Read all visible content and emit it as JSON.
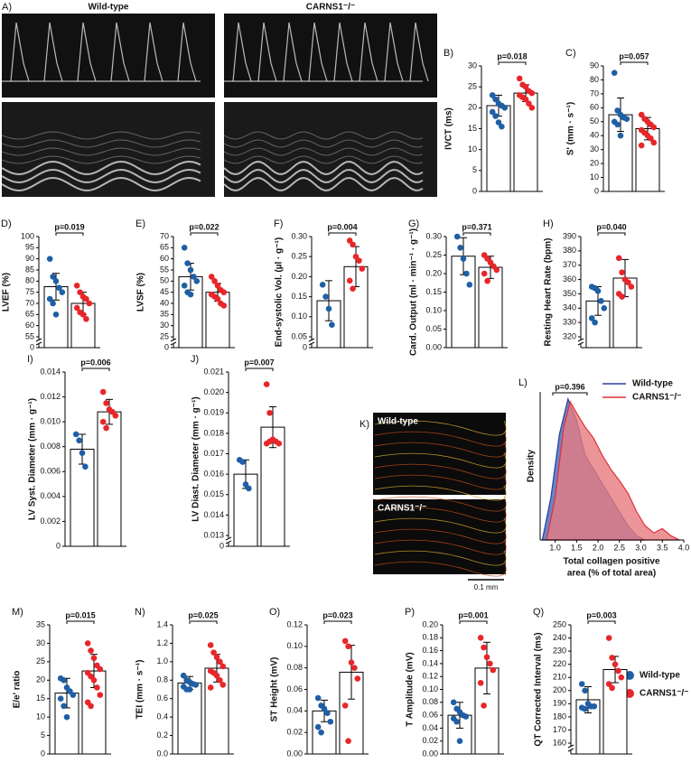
{
  "images": {
    "A": {
      "label": "A)",
      "wt": "Wild-type",
      "ko": "CARNS1⁻/⁻"
    },
    "K": {
      "label": "K)",
      "wt": "Wild-type",
      "ko": "CARNS1⁻/⁻",
      "scale": "0.1 mm"
    }
  },
  "legend": [
    {
      "name": "Wild-type",
      "color": "#1f5fa5"
    },
    {
      "name": "CARNS1⁻/⁻",
      "color": "#e8262a"
    }
  ],
  "chart_data": [
    {
      "type": "bar",
      "panel": "B)",
      "ylabel": "IVCT (ms)",
      "annotation": "p=0.018",
      "ylim": [
        0,
        30
      ],
      "yticks": [
        0,
        5,
        10,
        15,
        20,
        25,
        30
      ],
      "series": [
        {
          "color": "#1f5fa5",
          "values": [
            20.5
          ],
          "errors": [
            2.5
          ],
          "points": [
            23,
            22,
            21,
            20.5,
            20,
            19,
            18,
            16.5,
            15.5
          ]
        },
        {
          "color": "#e8262a",
          "values": [
            23.5
          ],
          "errors": [
            2
          ],
          "points": [
            27,
            25.5,
            25,
            24,
            23.5,
            23,
            22.5,
            22,
            21,
            20
          ]
        }
      ]
    },
    {
      "type": "bar",
      "panel": "C)",
      "ylabel": "S' (mm · s⁻¹)",
      "annotation": "p=0.057",
      "ylim": [
        0,
        90
      ],
      "yticks": [
        0,
        10,
        20,
        30,
        40,
        50,
        60,
        70,
        80,
        90
      ],
      "series": [
        {
          "color": "#1f5fa5",
          "values": [
            55
          ],
          "errors": [
            12
          ],
          "points": [
            85,
            58,
            55,
            53,
            52,
            50,
            48,
            40
          ]
        },
        {
          "color": "#e8262a",
          "values": [
            45
          ],
          "errors": [
            8
          ],
          "points": [
            55,
            52,
            50,
            48,
            46,
            44,
            42,
            40,
            38,
            35,
            33
          ]
        }
      ]
    },
    {
      "type": "bar",
      "panel": "D)",
      "ylabel": "LVEF (%)",
      "annotation": "p=0.019",
      "axis_break": true,
      "ylim": [
        55,
        100
      ],
      "yticks": [
        0,
        55,
        60,
        65,
        70,
        75,
        80,
        85,
        90,
        95,
        100
      ],
      "series": [
        {
          "color": "#1f5fa5",
          "values": [
            77.5
          ],
          "errors": [
            6
          ],
          "points": [
            90,
            82,
            80,
            77,
            75,
            72,
            70,
            65
          ]
        },
        {
          "color": "#e8262a",
          "values": [
            70
          ],
          "errors": [
            5
          ],
          "points": [
            78,
            75,
            73,
            72,
            70,
            68,
            66,
            65,
            63
          ]
        }
      ]
    },
    {
      "type": "bar",
      "panel": "E)",
      "ylabel": "LVSF (%)",
      "annotation": "p=0.022",
      "axis_break": true,
      "ylim": [
        25,
        70
      ],
      "yticks": [
        0,
        25,
        30,
        35,
        40,
        45,
        50,
        55,
        60,
        65,
        70
      ],
      "series": [
        {
          "color": "#1f5fa5",
          "values": [
            52
          ],
          "errors": [
            6
          ],
          "points": [
            65,
            58,
            55,
            52,
            50,
            48,
            45,
            44
          ]
        },
        {
          "color": "#e8262a",
          "values": [
            45
          ],
          "errors": [
            4
          ],
          "points": [
            52,
            50,
            48,
            46,
            45,
            44,
            43,
            42,
            40,
            39
          ]
        }
      ]
    },
    {
      "type": "bar",
      "panel": "F)",
      "ylabel": "End-systolic Vol. (µl · g⁻¹)",
      "annotation": "p=0.004",
      "axis_break": true,
      "ylim": [
        0.05,
        0.3
      ],
      "yticks": [
        0,
        0.05,
        {
          "value": 0.1,
          "label": "0.10"
        },
        0.15,
        {
          "value": 0.2,
          "label": "0.20"
        },
        0.25,
        {
          "value": 0.3,
          "label": "0.30"
        }
      ],
      "series": [
        {
          "color": "#1f5fa5",
          "values": [
            0.14
          ],
          "errors": [
            0.05
          ],
          "points": [
            0.18,
            0.15,
            0.12,
            0.08
          ]
        },
        {
          "color": "#e8262a",
          "values": [
            0.225
          ],
          "errors": [
            0.05
          ],
          "points": [
            0.29,
            0.28,
            0.25,
            0.24,
            0.22,
            0.19,
            0.17
          ]
        }
      ]
    },
    {
      "type": "bar",
      "panel": "G)",
      "ylabel": "Card. Output (ml · min⁻¹ · g⁻¹)",
      "annotation": "p=0.371",
      "ylim": [
        0,
        0.3
      ],
      "yticks": [
        {
          "value": 0,
          "label": "0.00"
        },
        0.05,
        {
          "value": 0.1,
          "label": "0.10"
        },
        0.15,
        {
          "value": 0.2,
          "label": "0.20"
        },
        0.25,
        {
          "value": 0.3,
          "label": "0.30"
        }
      ],
      "series": [
        {
          "color": "#1f5fa5",
          "values": [
            0.247
          ],
          "errors": [
            0.05
          ],
          "points": [
            0.3,
            0.27,
            0.24,
            0.2,
            0.17
          ]
        },
        {
          "color": "#e8262a",
          "values": [
            0.217
          ],
          "errors": [
            0.03
          ],
          "points": [
            0.25,
            0.24,
            0.23,
            0.22,
            0.21,
            0.2,
            0.18
          ]
        }
      ]
    },
    {
      "type": "bar",
      "panel": "H)",
      "ylabel": "Resting Heart Rate (bpm)",
      "annotation": "p=0.040",
      "axis_break": true,
      "ylim": [
        320,
        390
      ],
      "yticks": [
        320,
        330,
        340,
        350,
        360,
        370,
        380,
        390
      ],
      "series": [
        {
          "color": "#1f5fa5",
          "values": [
            345
          ],
          "errors": [
            10
          ],
          "points": [
            355,
            354,
            352,
            345,
            340,
            333,
            330
          ]
        },
        {
          "color": "#e8262a",
          "values": [
            361
          ],
          "errors": [
            13
          ],
          "points": [
            375,
            365,
            360,
            358,
            355,
            350,
            348
          ]
        }
      ]
    },
    {
      "type": "bar",
      "panel": "I)",
      "ylabel": "LV Syst. Diameter (mm · g⁻¹)",
      "annotation": "p=0.006",
      "ylim": [
        0,
        0.014
      ],
      "yticks": [
        0,
        0.002,
        0.004,
        0.006,
        0.008,
        {
          "value": 0.01,
          "label": "0.010"
        },
        0.012,
        0.014
      ],
      "series": [
        {
          "color": "#1f5fa5",
          "values": [
            0.0078
          ],
          "errors": [
            0.0012
          ],
          "points": [
            0.009,
            0.0085,
            0.0075,
            0.0064
          ]
        },
        {
          "color": "#e8262a",
          "values": [
            0.0108
          ],
          "errors": [
            0.001
          ],
          "points": [
            0.0124,
            0.0115,
            0.011,
            0.0108,
            0.0105,
            0.01,
            0.0095
          ]
        }
      ]
    },
    {
      "type": "bar",
      "panel": "J)",
      "ylabel": "LV Diast. Diameter (mm · g⁻¹)",
      "annotation": "p=0.007",
      "axis_break": true,
      "ylim": [
        0.013,
        0.021
      ],
      "yticks": [
        0,
        0.013,
        0.014,
        0.015,
        0.016,
        0.017,
        0.018,
        0.019,
        {
          "value": 0.02,
          "label": "0.020"
        },
        0.021
      ],
      "series": [
        {
          "color": "#1f5fa5",
          "values": [
            0.016
          ],
          "errors": [
            0.0007
          ],
          "points": [
            0.0167,
            0.0166,
            0.0155,
            0.0153
          ]
        },
        {
          "color": "#e8262a",
          "values": [
            0.0183
          ],
          "errors": [
            0.001
          ],
          "points": [
            0.0204,
            0.019,
            0.0177,
            0.0176,
            0.0175,
            0.0175,
            0.0176
          ]
        }
      ]
    },
    {
      "type": "density",
      "panel": "L)",
      "ylabel": "Density",
      "xlabel": [
        "Total collagen positive",
        "area (% of total area)"
      ],
      "annotation": "p=0.396",
      "xlim": [
        0.65,
        4
      ],
      "ylim": [
        0,
        1.05
      ],
      "xticks": [
        {
          "value": 1,
          "label": "1.0"
        },
        1.5,
        {
          "value": 2,
          "label": "2.0"
        },
        2.5,
        {
          "value": 3,
          "label": "3.0"
        },
        3.5,
        {
          "value": 4,
          "label": "4.0"
        }
      ],
      "series": [
        {
          "name": "Wild-type",
          "color": "#2b3f9e",
          "fill": "#5a78c0",
          "x": [
            0.7,
            0.9,
            1.1,
            1.3,
            1.5,
            1.7,
            1.9,
            2.1,
            2.3,
            2.5,
            2.7,
            2.9,
            3.1
          ],
          "values": [
            0,
            0.3,
            0.75,
            1,
            0.85,
            0.6,
            0.5,
            0.4,
            0.3,
            0.2,
            0.1,
            0.03,
            0
          ]
        },
        {
          "name": "CARNS1⁻/⁻",
          "color": "#e0303a",
          "fill": "#e77a80",
          "x": [
            0.8,
            1,
            1.2,
            1.35,
            1.5,
            1.7,
            1.9,
            2.1,
            2.3,
            2.5,
            2.7,
            2.9,
            3.1,
            3.3,
            3.5,
            3.7,
            3.9
          ],
          "values": [
            0,
            0.3,
            0.8,
            0.98,
            0.9,
            0.8,
            0.72,
            0.6,
            0.5,
            0.42,
            0.33,
            0.2,
            0.1,
            0.05,
            0.08,
            0.03,
            0
          ]
        }
      ]
    },
    {
      "type": "bar",
      "panel": "M)",
      "ylabel": "E/e' ratio",
      "annotation": "p=0.015",
      "ylim": [
        0,
        35
      ],
      "yticks": [
        0,
        5,
        10,
        15,
        20,
        25,
        30,
        35
      ],
      "series": [
        {
          "color": "#1f5fa5",
          "values": [
            16.5
          ],
          "errors": [
            4
          ],
          "points": [
            20.5,
            20,
            18,
            17,
            16,
            15,
            13,
            10
          ]
        },
        {
          "color": "#e8262a",
          "values": [
            22.5
          ],
          "errors": [
            4.5
          ],
          "points": [
            30,
            28,
            26,
            24,
            23,
            22,
            21,
            20,
            18,
            16,
            14,
            13
          ]
        }
      ]
    },
    {
      "type": "bar",
      "panel": "N)",
      "ylabel": "TEI (mm · s⁻¹)",
      "annotation": "p=0.025",
      "ylim": [
        0,
        1.4
      ],
      "yticks": [
        {
          "value": 0,
          "label": "0.0"
        },
        0.2,
        0.4,
        0.6,
        0.8,
        {
          "value": 1,
          "label": "1.0"
        },
        1.2,
        1.4
      ],
      "series": [
        {
          "color": "#1f5fa5",
          "values": [
            0.77
          ],
          "errors": [
            0.07
          ],
          "points": [
            0.85,
            0.8,
            0.78,
            0.76,
            0.75,
            0.73,
            0.7,
            0.7
          ]
        },
        {
          "color": "#e8262a",
          "values": [
            0.93
          ],
          "errors": [
            0.15
          ],
          "points": [
            1.18,
            1.1,
            1.05,
            1,
            0.95,
            0.9,
            0.88,
            0.85,
            0.8,
            0.75,
            0.72
          ]
        }
      ]
    },
    {
      "type": "bar",
      "panel": "O)",
      "ylabel": "ST Height (mV)",
      "annotation": "p=0.023",
      "ylim": [
        0,
        0.12
      ],
      "yticks": [
        {
          "value": 0,
          "label": "0.00"
        },
        0.02,
        0.04,
        0.06,
        0.08,
        {
          "value": 0.1,
          "label": "0.10"
        },
        0.12
      ],
      "series": [
        {
          "color": "#1f5fa5",
          "values": [
            0.04
          ],
          "errors": [
            0.01
          ],
          "points": [
            0.052,
            0.045,
            0.042,
            0.038,
            0.03,
            0.025,
            0.02
          ]
        },
        {
          "color": "#e8262a",
          "values": [
            0.076
          ],
          "errors": [
            0.025
          ],
          "points": [
            0.105,
            0.1,
            0.085,
            0.08,
            0.07,
            0.045,
            0.012
          ]
        }
      ]
    },
    {
      "type": "bar",
      "panel": "P)",
      "ylabel": "T Amplitude (mV)",
      "annotation": "p=0.001",
      "ylim": [
        0,
        0.2
      ],
      "yticks": [
        {
          "value": 0,
          "label": "0.00"
        },
        0.02,
        0.04,
        0.06,
        0.08,
        {
          "value": 0.1,
          "label": "0.10"
        },
        0.12,
        0.14,
        0.16,
        0.18,
        {
          "value": 0.2,
          "label": "0.20"
        }
      ],
      "series": [
        {
          "color": "#1f5fa5",
          "values": [
            0.06
          ],
          "errors": [
            0.02
          ],
          "points": [
            0.08,
            0.07,
            0.065,
            0.06,
            0.058,
            0.055,
            0.05,
            0.02
          ]
        },
        {
          "color": "#e8262a",
          "values": [
            0.133
          ],
          "errors": [
            0.04
          ],
          "points": [
            0.18,
            0.165,
            0.15,
            0.14,
            0.13,
            0.11,
            0.075
          ]
        }
      ]
    },
    {
      "type": "bar",
      "panel": "Q)",
      "ylabel": "QT Corrected Interval (ms)",
      "annotation": "p=0.003",
      "axis_break": true,
      "ylim": [
        160,
        250
      ],
      "yticks": [
        160,
        170,
        180,
        190,
        200,
        210,
        220,
        230,
        240,
        250
      ],
      "series": [
        {
          "color": "#1f5fa5",
          "values": [
            193
          ],
          "errors": [
            10
          ],
          "points": [
            205,
            200,
            190,
            188,
            188,
            187,
            186
          ]
        },
        {
          "color": "#e8262a",
          "values": [
            216
          ],
          "errors": [
            10
          ],
          "points": [
            240,
            225,
            220,
            215,
            210,
            205,
            202
          ]
        }
      ]
    }
  ]
}
